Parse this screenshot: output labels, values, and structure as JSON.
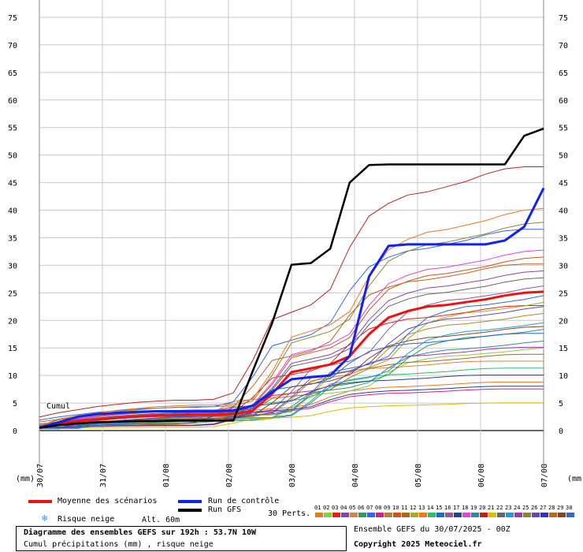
{
  "chart_data": {
    "type": "line",
    "title": "Diagramme des ensembles GEFS sur 192h : 53.7N 10W",
    "subtitle": "Cumul précipitations (mm) , risque neige",
    "ylabel": "Cumul",
    "y_unit": "(mm)",
    "ylim": [
      0,
      75
    ],
    "y_ticks": [
      0,
      5,
      10,
      15,
      20,
      25,
      30,
      35,
      40,
      45,
      50,
      55,
      60,
      65,
      70,
      75
    ],
    "x_ticks": [
      "30/07",
      "31/07",
      "01/08",
      "02/08",
      "03/08",
      "04/08",
      "05/08",
      "06/08",
      "07/08"
    ],
    "grid": true,
    "series": [
      {
        "name": "Moyenne des scénarios",
        "color": "#ee1111",
        "values": [
          0.5,
          1.3,
          1.7,
          2.0,
          2.3,
          2.5,
          2.7,
          2.8,
          2.9,
          2.9,
          3.0,
          3.6,
          6.7,
          10.6,
          11.3,
          12.0,
          13.5,
          17.5,
          20.5,
          21.7,
          22.5,
          22.8,
          23.3,
          23.8,
          24.5,
          25.0,
          25.2
        ]
      },
      {
        "name": "Run de contrôle",
        "color": "#1122ee",
        "values": [
          0.5,
          1.5,
          2.5,
          3.0,
          3.2,
          3.4,
          3.5,
          3.5,
          3.5,
          3.5,
          3.6,
          4.5,
          7.0,
          9.3,
          9.7,
          10.0,
          13.5,
          28.0,
          33.5,
          33.8,
          33.8,
          33.8,
          33.8,
          33.8,
          34.5,
          37.0,
          44.0
        ]
      },
      {
        "name": "Run GFS",
        "color": "#000000",
        "values": [
          0.5,
          1.0,
          1.3,
          1.5,
          1.6,
          1.7,
          1.7,
          1.8,
          1.8,
          1.8,
          1.8,
          10.8,
          19.5,
          30.1,
          30.4,
          33.0,
          45.0,
          48.2,
          48.3,
          48.3,
          48.3,
          48.3,
          48.3,
          48.3,
          48.3,
          53.5,
          54.8
        ]
      }
    ],
    "perturbations": {
      "label": "30 Perts.",
      "count": 30,
      "colors": [
        "#ee7722",
        "#88cc44",
        "#dd2222",
        "#8844aa",
        "#cc8844",
        "#339955",
        "#3366ee",
        "#cc2288",
        "#aa8833",
        "#cc5522",
        "#aa6622",
        "#aaaa22",
        "#ee7722",
        "#33bb66",
        "#2266cc",
        "#995599",
        "#224488",
        "#dd44dd",
        "#338899",
        "#bb2222",
        "#ddbb00",
        "#666666",
        "#2299dd",
        "#aa33aa",
        "#888833",
        "#6644bb",
        "#3333aa",
        "#bb6622",
        "#884422",
        "#3366cc"
      ]
    }
  },
  "legend": {
    "mean": "Moyenne des scénarios",
    "control": "Run de contrôle",
    "gfs": "Run GFS",
    "snow": "Risque neige",
    "altitude": "Alt. 60m",
    "perts": "30 Perts.",
    "pert_numbers": [
      "01",
      "02",
      "03",
      "04",
      "05",
      "06",
      "07",
      "08",
      "09",
      "10",
      "11",
      "12",
      "13",
      "14",
      "15",
      "16",
      "17",
      "18",
      "19",
      "20",
      "21",
      "22",
      "23",
      "24",
      "25",
      "26",
      "27",
      "28",
      "29",
      "30"
    ]
  },
  "footer": {
    "title": "Diagramme des ensembles GEFS sur 192h : 53.7N 10W",
    "subtitle": "Cumul précipitations (mm) , risque neige",
    "ensemble": "Ensemble GEFS du 30/07/2025 - 00Z",
    "copyright": "Copyright 2025 Meteociel.fr"
  }
}
